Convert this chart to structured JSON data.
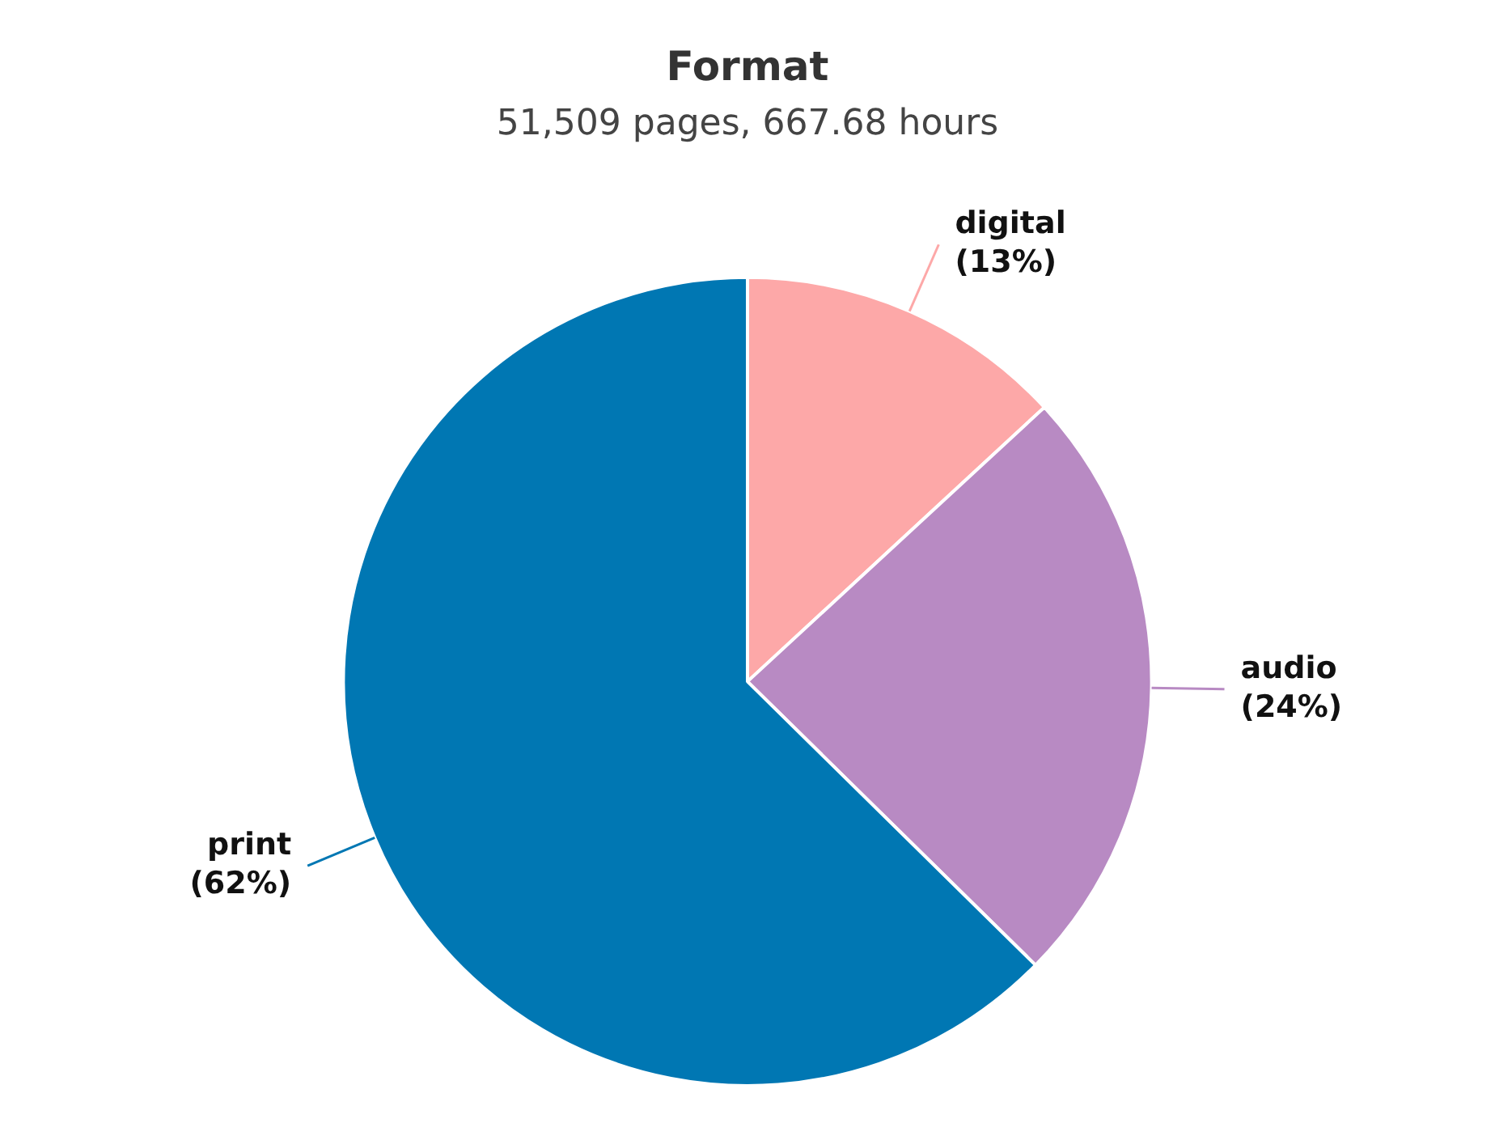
{
  "chart_data": {
    "type": "pie",
    "title": "Format",
    "subtitle": "51,509 pages, 667.68 hours",
    "categories": [
      "digital",
      "audio",
      "print"
    ],
    "values": [
      13,
      24,
      62
    ],
    "colors": [
      "#fda8a8",
      "#b88ac3",
      "#0077b3"
    ],
    "value_labels": [
      "(13%)",
      "(24%)",
      "(62%)"
    ],
    "legend": false
  }
}
